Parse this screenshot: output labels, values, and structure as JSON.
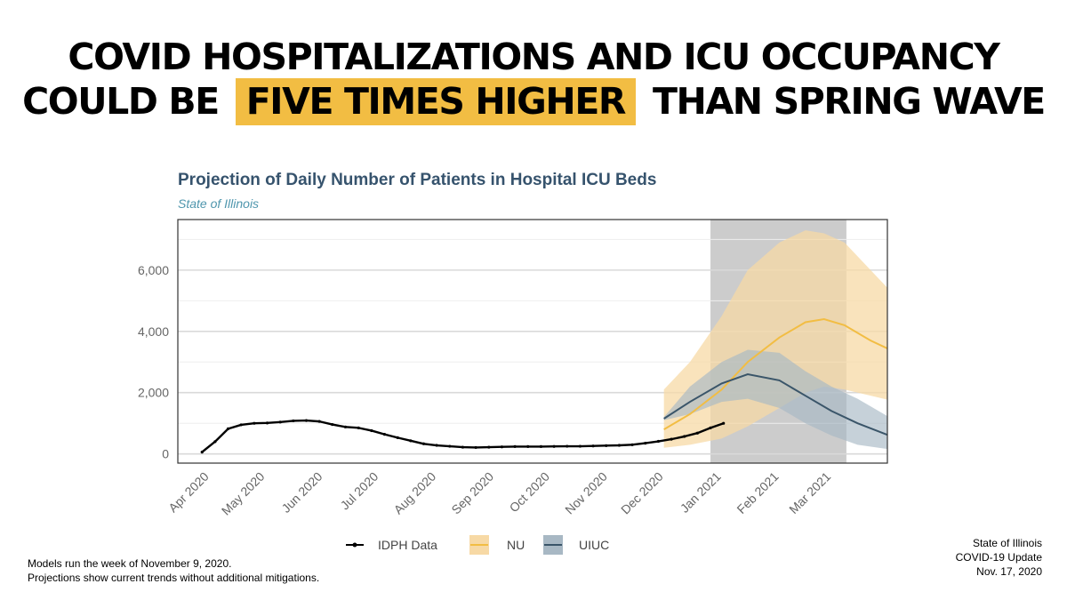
{
  "headline": {
    "line1": "COVID HOSPITALIZATIONS AND ICU OCCUPANCY",
    "line2_before": "COULD BE",
    "line2_highlight": "FIVE TIMES HIGHER",
    "line2_after": "THAN SPRING WAVE",
    "highlight_color": "#f2bd43"
  },
  "footnotes": [
    "Models run the week of November 9, 2020.",
    "Projections show current trends without additional mitigations."
  ],
  "credit": [
    "State of Illinois",
    "COVID-19 Update",
    "Nov. 17, 2020"
  ],
  "chart_data": {
    "type": "line",
    "title": "Projection of Daily Number of Patients in Hospital ICU Beds",
    "subtitle": "State of Illinois",
    "xlabel": "",
    "ylabel": "",
    "xlim": [
      "2020-03-15",
      "2021-03-31"
    ],
    "ylim": [
      -300,
      7650
    ],
    "x_ticks": [
      "Apr 2020",
      "May 2020",
      "Jun 2020",
      "Jul 2020",
      "Aug 2020",
      "Sep 2020",
      "Oct 2020",
      "Nov 2020",
      "Dec 2020",
      "Jan 2021",
      "Feb 2021",
      "Mar 2021"
    ],
    "y_ticks": [
      0,
      2000,
      4000,
      6000
    ],
    "y_tick_labels": [
      "0",
      "2,000",
      "4,000",
      "6,000"
    ],
    "grid": true,
    "shaded_region": {
      "start": "2020-12-26",
      "end": "2021-03-09",
      "color": "#cccccc"
    },
    "legend": {
      "position": "bottom",
      "entries": [
        "IDPH Data",
        "NU",
        "UIUC"
      ]
    },
    "series": [
      {
        "name": "IDPH Data",
        "color": "#000000",
        "points": [
          [
            "2020-03-28",
            60
          ],
          [
            "2020-04-04",
            400
          ],
          [
            "2020-04-11",
            820
          ],
          [
            "2020-04-18",
            950
          ],
          [
            "2020-04-25",
            1000
          ],
          [
            "2020-05-02",
            1010
          ],
          [
            "2020-05-09",
            1040
          ],
          [
            "2020-05-16",
            1080
          ],
          [
            "2020-05-23",
            1090
          ],
          [
            "2020-05-30",
            1060
          ],
          [
            "2020-06-06",
            960
          ],
          [
            "2020-06-13",
            880
          ],
          [
            "2020-06-20",
            850
          ],
          [
            "2020-06-27",
            760
          ],
          [
            "2020-07-04",
            640
          ],
          [
            "2020-07-11",
            530
          ],
          [
            "2020-07-18",
            430
          ],
          [
            "2020-07-25",
            330
          ],
          [
            "2020-08-01",
            280
          ],
          [
            "2020-08-08",
            250
          ],
          [
            "2020-08-15",
            220
          ],
          [
            "2020-08-22",
            210
          ],
          [
            "2020-08-29",
            220
          ],
          [
            "2020-09-05",
            230
          ],
          [
            "2020-09-12",
            240
          ],
          [
            "2020-09-19",
            240
          ],
          [
            "2020-09-26",
            240
          ],
          [
            "2020-10-03",
            245
          ],
          [
            "2020-10-10",
            250
          ],
          [
            "2020-10-17",
            250
          ],
          [
            "2020-10-24",
            260
          ],
          [
            "2020-10-31",
            270
          ],
          [
            "2020-11-07",
            280
          ],
          [
            "2020-11-14",
            300
          ],
          [
            "2020-11-21",
            350
          ],
          [
            "2020-11-28",
            410
          ],
          [
            "2020-12-05",
            480
          ],
          [
            "2020-12-12",
            570
          ],
          [
            "2020-12-19",
            680
          ],
          [
            "2020-12-26",
            850
          ],
          [
            "2021-01-02",
            1000
          ]
        ]
      },
      {
        "name": "NU",
        "color": "#f2bd43",
        "band_color": "#f7d9a5",
        "points": [
          [
            "2020-12-01",
            800
          ],
          [
            "2020-12-15",
            1300
          ],
          [
            "2021-01-01",
            2100
          ],
          [
            "2021-01-15",
            3000
          ],
          [
            "2021-02-01",
            3800
          ],
          [
            "2021-02-15",
            4300
          ],
          [
            "2021-02-25",
            4400
          ],
          [
            "2021-03-08",
            4200
          ],
          [
            "2021-03-22",
            3700
          ],
          [
            "2021-04-05",
            3300
          ],
          [
            "2021-04-14",
            2800
          ]
        ],
        "band": [
          [
            "2020-12-01",
            200,
            2100
          ],
          [
            "2020-12-15",
            300,
            3000
          ],
          [
            "2021-01-01",
            500,
            4500
          ],
          [
            "2021-01-15",
            900,
            6000
          ],
          [
            "2021-02-01",
            1500,
            6900
          ],
          [
            "2021-02-15",
            2000,
            7300
          ],
          [
            "2021-02-25",
            2200,
            7200
          ],
          [
            "2021-03-08",
            2100,
            6900
          ],
          [
            "2021-03-22",
            1900,
            6000
          ],
          [
            "2021-04-05",
            1700,
            5100
          ],
          [
            "2021-04-14",
            1400,
            4700
          ]
        ]
      },
      {
        "name": "UIUC",
        "color": "#3a5569",
        "band_color": "#a8b8c4",
        "points": [
          [
            "2020-12-01",
            1150
          ],
          [
            "2020-12-15",
            1700
          ],
          [
            "2021-01-01",
            2300
          ],
          [
            "2021-01-15",
            2600
          ],
          [
            "2021-02-01",
            2400
          ],
          [
            "2021-02-15",
            1900
          ],
          [
            "2021-03-01",
            1400
          ],
          [
            "2021-03-15",
            1000
          ],
          [
            "2021-04-01",
            600
          ],
          [
            "2021-04-14",
            350
          ]
        ],
        "band": [
          [
            "2020-12-01",
            1100,
            1200
          ],
          [
            "2020-12-15",
            1300,
            2200
          ],
          [
            "2021-01-01",
            1700,
            3000
          ],
          [
            "2021-01-15",
            1800,
            3400
          ],
          [
            "2021-02-01",
            1500,
            3300
          ],
          [
            "2021-02-15",
            1000,
            2700
          ],
          [
            "2021-03-01",
            600,
            2200
          ],
          [
            "2021-03-15",
            300,
            1800
          ],
          [
            "2021-04-01",
            150,
            1200
          ],
          [
            "2021-04-14",
            100,
            600
          ]
        ]
      }
    ]
  }
}
